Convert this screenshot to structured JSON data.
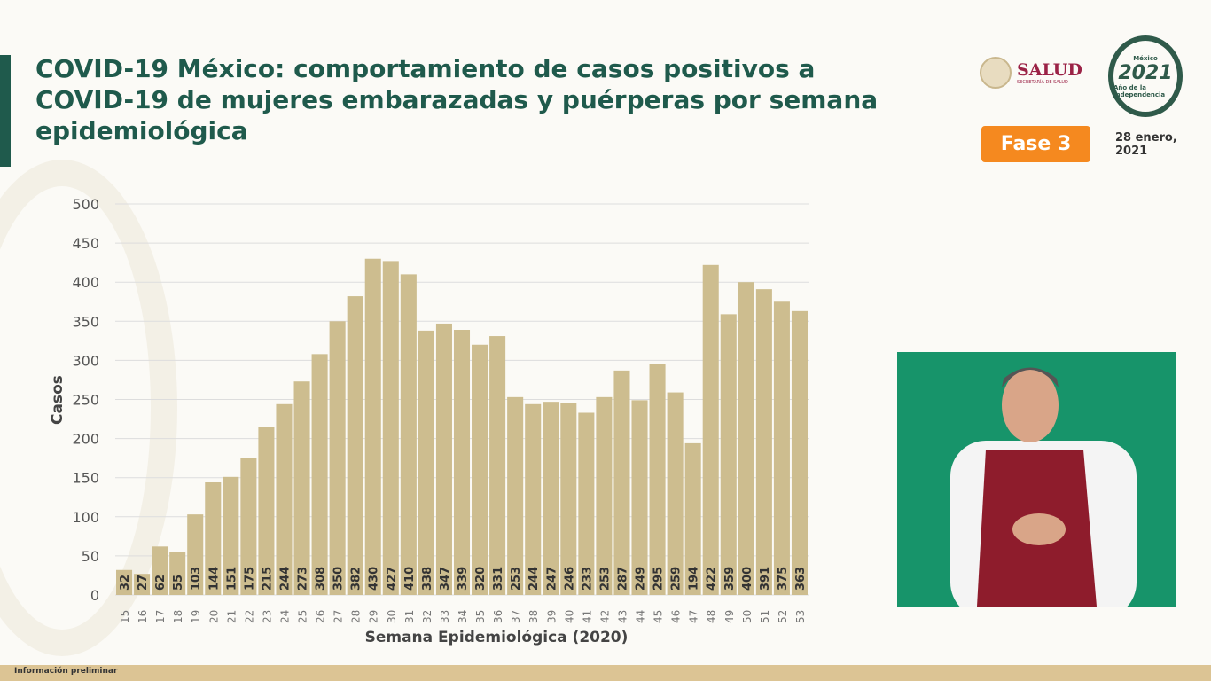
{
  "title": "COVID-19 México: comportamiento de casos positivos a COVID-19 de mujeres embarazadas y puérperas por semana epidemiológica",
  "header": {
    "salud_label": "SALUD",
    "salud_sub": "SECRETARÍA DE SALUD",
    "logo_year": "2021",
    "logo_top": "México",
    "logo_sub": "Año de la Independencia",
    "fase_label": "Fase 3",
    "date": "28 enero, 2021"
  },
  "footer": {
    "note": "Información preliminar"
  },
  "colors": {
    "title": "#1f5a4c",
    "bar": "#cdbd8f",
    "fase": "#f5891f",
    "salud": "#9b2246"
  },
  "chart_data": {
    "type": "bar",
    "title": "",
    "xlabel": "Semana Epidemiológica (2020)",
    "ylabel": "Casos",
    "ylim": [
      0,
      500
    ],
    "yticks": [
      0,
      50,
      100,
      150,
      200,
      250,
      300,
      350,
      400,
      450,
      500
    ],
    "grid": true,
    "categories": [
      "15",
      "16",
      "17",
      "18",
      "19",
      "20",
      "21",
      "22",
      "23",
      "24",
      "25",
      "26",
      "27",
      "28",
      "29",
      "30",
      "31",
      "32",
      "33",
      "34",
      "35",
      "36",
      "37",
      "38",
      "39",
      "40",
      "41",
      "42",
      "43",
      "44",
      "45",
      "46",
      "47",
      "48",
      "49",
      "50",
      "51",
      "52",
      "53"
    ],
    "values": [
      32,
      27,
      62,
      55,
      103,
      144,
      151,
      175,
      215,
      244,
      273,
      308,
      350,
      382,
      430,
      427,
      410,
      338,
      347,
      339,
      320,
      331,
      253,
      244,
      247,
      246,
      233,
      253,
      287,
      249,
      295,
      259,
      194,
      422,
      359,
      400,
      391,
      375,
      363
    ]
  }
}
